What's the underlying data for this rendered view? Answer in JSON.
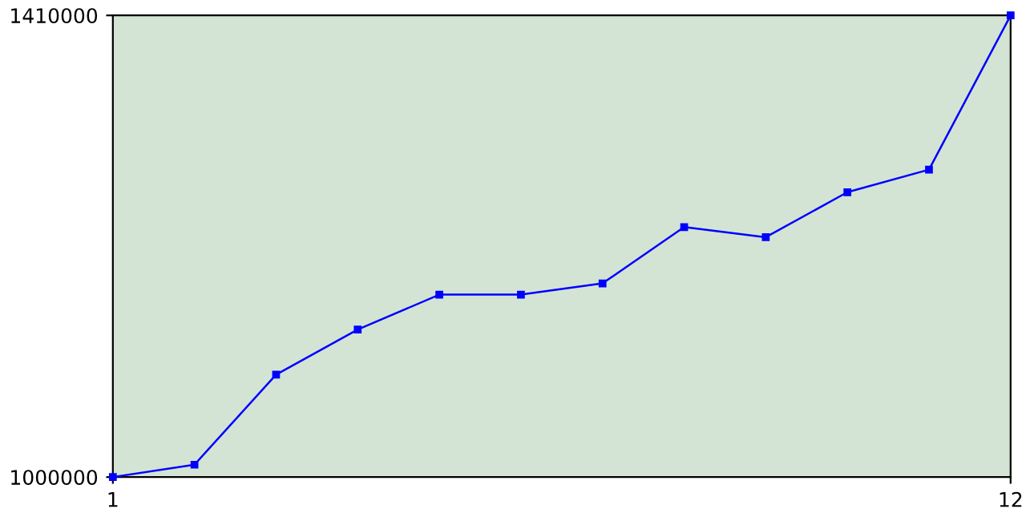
{
  "chart_data": {
    "type": "line",
    "x": [
      1,
      2,
      3,
      4,
      5,
      6,
      7,
      8,
      9,
      10,
      11,
      12
    ],
    "series": [
      {
        "color": "#0000ff",
        "values": [
          1000000,
          1011000,
          1091000,
          1131000,
          1162000,
          1162000,
          1172000,
          1222000,
          1213000,
          1253000,
          1273000,
          1410000
        ]
      }
    ],
    "xlim": [
      1,
      12
    ],
    "ylim": [
      1000000,
      1410000
    ],
    "xticks": [
      1,
      12
    ],
    "yticks": [
      1000000,
      1410000
    ],
    "grid": false,
    "legend": false,
    "marker": "square",
    "line_style": "solid"
  }
}
